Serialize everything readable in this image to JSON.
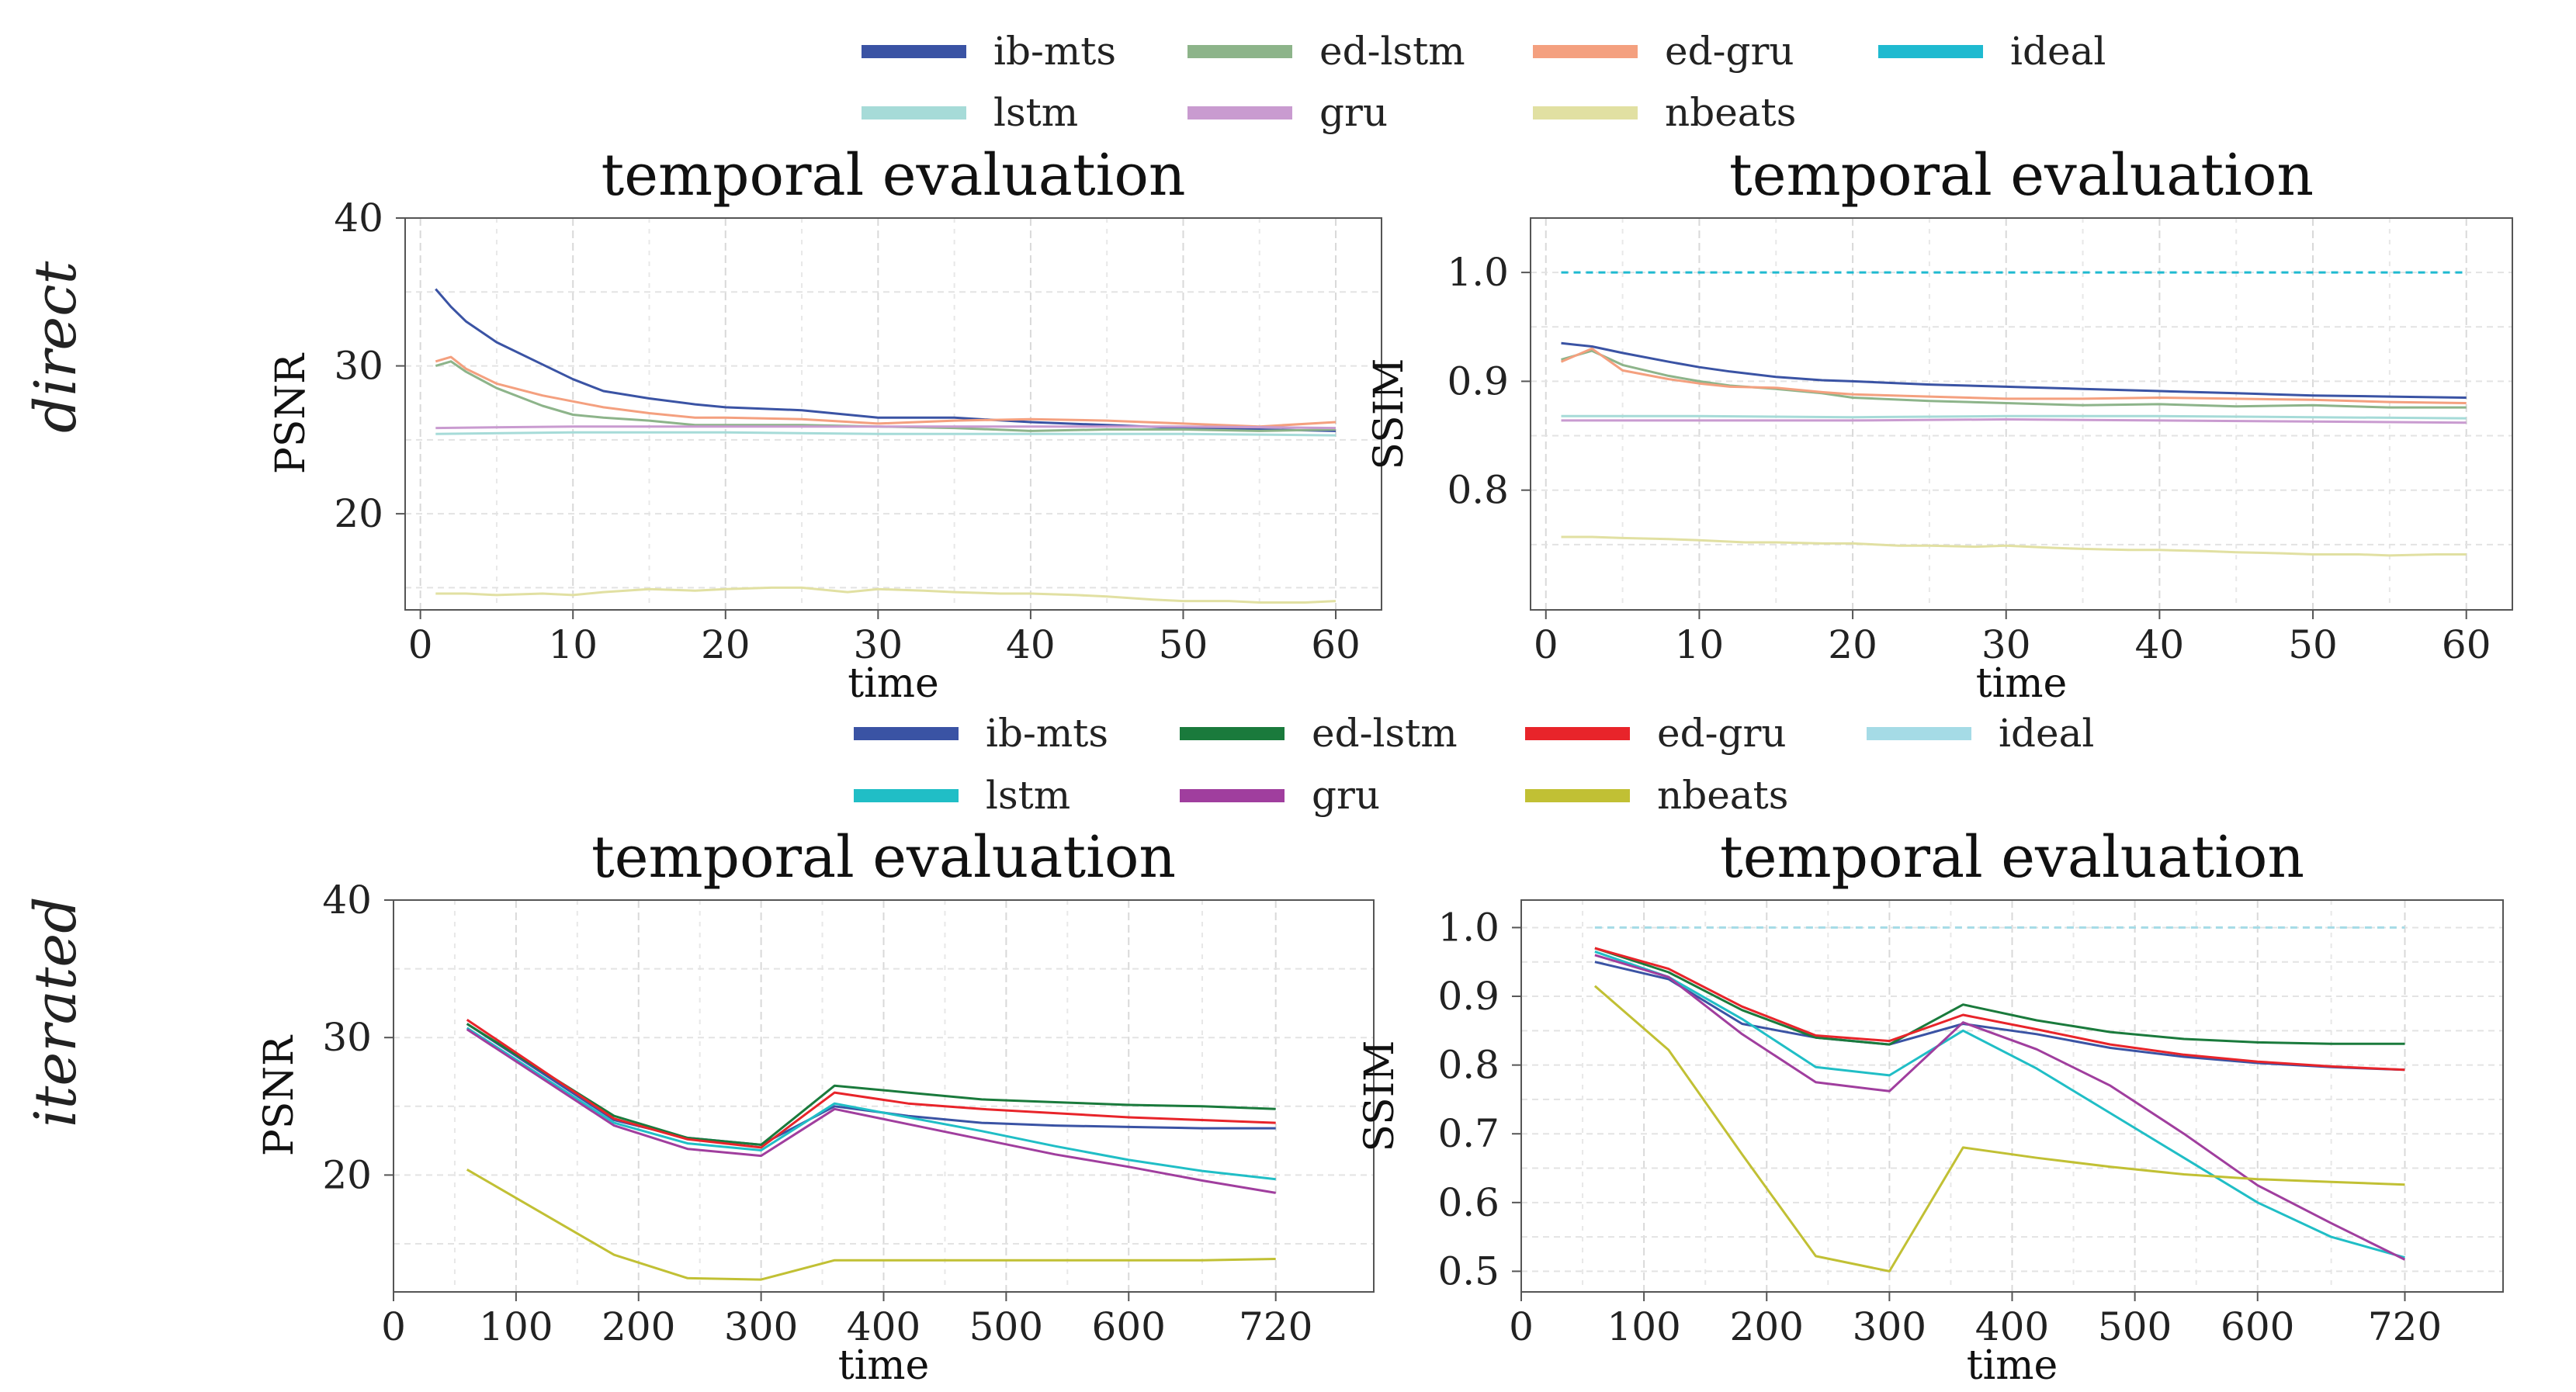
{
  "rows": [
    {
      "label": "direct"
    },
    {
      "label": "iterated"
    }
  ],
  "legends": [
    {
      "items": [
        {
          "name": "ib-mts",
          "color": "#3a53a4"
        },
        {
          "name": "ed-lstm",
          "color": "#8db48a"
        },
        {
          "name": "ed-gru",
          "color": "#f4a07f"
        },
        {
          "name": "ideal",
          "color": "#1fbad0"
        },
        {
          "name": "lstm",
          "color": "#a6dbd8"
        },
        {
          "name": "gru",
          "color": "#c99bd0"
        },
        {
          "name": "nbeats",
          "color": "#e1e0a2"
        }
      ]
    },
    {
      "items": [
        {
          "name": "ib-mts",
          "color": "#3a53a4"
        },
        {
          "name": "ed-lstm",
          "color": "#1a7a3c"
        },
        {
          "name": "ed-gru",
          "color": "#e8242a"
        },
        {
          "name": "ideal",
          "color": "#a5dbe6"
        },
        {
          "name": "lstm",
          "color": "#20bec6"
        },
        {
          "name": "gru",
          "color": "#a03e9e"
        },
        {
          "name": "nbeats",
          "color": "#c1c034"
        }
      ]
    }
  ],
  "chart_data": [
    {
      "type": "line",
      "title": "temporal evaluation",
      "xlabel": "time",
      "ylabel": "PSNR",
      "xlim": [
        -1,
        63
      ],
      "ylim": [
        13.5,
        40
      ],
      "xticks": [
        0,
        10,
        20,
        30,
        40,
        50,
        60
      ],
      "yticks": [
        20,
        30,
        40
      ],
      "legend": 0,
      "series": [
        {
          "name": "ib-mts",
          "x": [
            1,
            2,
            3,
            5,
            8,
            10,
            12,
            15,
            18,
            20,
            25,
            30,
            35,
            40,
            45,
            50,
            55,
            60
          ],
          "values": [
            35.2,
            34.0,
            33.0,
            31.6,
            30.1,
            29.1,
            28.3,
            27.8,
            27.4,
            27.2,
            27.0,
            26.5,
            26.5,
            26.2,
            26.0,
            25.8,
            25.7,
            25.6
          ]
        },
        {
          "name": "ed-lstm",
          "x": [
            1,
            2,
            3,
            5,
            8,
            10,
            12,
            15,
            18,
            20,
            25,
            30,
            35,
            40,
            45,
            50,
            55,
            60
          ],
          "values": [
            30.0,
            30.3,
            29.6,
            28.5,
            27.3,
            26.7,
            26.5,
            26.3,
            26.0,
            26.0,
            26.0,
            25.9,
            25.8,
            25.6,
            25.7,
            25.7,
            25.6,
            25.7
          ]
        },
        {
          "name": "ed-gru",
          "x": [
            1,
            2,
            3,
            5,
            8,
            10,
            12,
            15,
            18,
            20,
            25,
            30,
            35,
            40,
            45,
            50,
            55,
            60
          ],
          "values": [
            30.3,
            30.6,
            29.8,
            28.8,
            28.0,
            27.6,
            27.2,
            26.8,
            26.5,
            26.5,
            26.4,
            26.1,
            26.3,
            26.4,
            26.3,
            26.1,
            25.9,
            26.2
          ]
        },
        {
          "name": "lstm",
          "x": [
            1,
            10,
            20,
            30,
            40,
            50,
            60
          ],
          "values": [
            25.4,
            25.5,
            25.5,
            25.4,
            25.4,
            25.4,
            25.3
          ]
        },
        {
          "name": "gru",
          "x": [
            1,
            10,
            20,
            30,
            40,
            50,
            60
          ],
          "values": [
            25.8,
            25.9,
            25.9,
            25.9,
            25.9,
            25.9,
            25.8
          ]
        },
        {
          "name": "nbeats",
          "x": [
            1,
            3,
            5,
            8,
            10,
            12,
            15,
            18,
            20,
            23,
            25,
            28,
            30,
            33,
            35,
            38,
            40,
            43,
            45,
            48,
            50,
            53,
            55,
            58,
            60
          ],
          "values": [
            14.6,
            14.6,
            14.5,
            14.6,
            14.5,
            14.7,
            14.9,
            14.8,
            14.9,
            15.0,
            15.0,
            14.7,
            14.9,
            14.8,
            14.7,
            14.6,
            14.6,
            14.5,
            14.4,
            14.2,
            14.1,
            14.1,
            14.0,
            14.0,
            14.1
          ]
        }
      ]
    },
    {
      "type": "line",
      "title": "temporal evaluation",
      "xlabel": "time",
      "ylabel": "SSIM",
      "xlim": [
        -1,
        63
      ],
      "ylim": [
        0.69,
        1.05
      ],
      "xticks": [
        0,
        10,
        20,
        30,
        40,
        50,
        60
      ],
      "yticks": [
        0.8,
        0.9,
        1.0
      ],
      "legend": 0,
      "series": [
        {
          "name": "ideal",
          "x": [
            1,
            60
          ],
          "values": [
            1.0,
            1.0
          ],
          "dashed": true
        },
        {
          "name": "ib-mts",
          "x": [
            1,
            3,
            5,
            8,
            10,
            12,
            15,
            18,
            20,
            25,
            30,
            35,
            40,
            45,
            50,
            55,
            60
          ],
          "values": [
            0.935,
            0.932,
            0.926,
            0.918,
            0.913,
            0.909,
            0.904,
            0.901,
            0.9,
            0.897,
            0.895,
            0.893,
            0.891,
            0.889,
            0.887,
            0.886,
            0.885
          ]
        },
        {
          "name": "ed-lstm",
          "x": [
            1,
            3,
            5,
            8,
            10,
            12,
            15,
            18,
            20,
            25,
            30,
            35,
            40,
            45,
            50,
            55,
            60
          ],
          "values": [
            0.92,
            0.928,
            0.915,
            0.905,
            0.9,
            0.896,
            0.893,
            0.889,
            0.885,
            0.882,
            0.88,
            0.878,
            0.879,
            0.877,
            0.878,
            0.876,
            0.876
          ]
        },
        {
          "name": "ed-gru",
          "x": [
            1,
            3,
            5,
            8,
            10,
            12,
            15,
            18,
            20,
            25,
            30,
            35,
            40,
            45,
            50,
            55,
            60
          ],
          "values": [
            0.918,
            0.93,
            0.91,
            0.902,
            0.898,
            0.895,
            0.894,
            0.89,
            0.888,
            0.886,
            0.884,
            0.884,
            0.885,
            0.884,
            0.883,
            0.881,
            0.88
          ]
        },
        {
          "name": "lstm",
          "x": [
            1,
            10,
            20,
            30,
            40,
            50,
            60
          ],
          "values": [
            0.868,
            0.868,
            0.867,
            0.868,
            0.868,
            0.867,
            0.866
          ]
        },
        {
          "name": "gru",
          "x": [
            1,
            10,
            20,
            30,
            40,
            50,
            60
          ],
          "values": [
            0.864,
            0.864,
            0.864,
            0.865,
            0.864,
            0.863,
            0.862
          ]
        },
        {
          "name": "nbeats",
          "x": [
            1,
            3,
            5,
            8,
            10,
            13,
            15,
            18,
            20,
            23,
            25,
            28,
            30,
            33,
            35,
            38,
            40,
            43,
            45,
            48,
            50,
            53,
            55,
            58,
            60
          ],
          "values": [
            0.757,
            0.757,
            0.756,
            0.755,
            0.754,
            0.752,
            0.752,
            0.751,
            0.751,
            0.749,
            0.749,
            0.748,
            0.749,
            0.747,
            0.746,
            0.745,
            0.745,
            0.744,
            0.743,
            0.742,
            0.741,
            0.741,
            0.74,
            0.741,
            0.741
          ]
        }
      ]
    },
    {
      "type": "line",
      "title": "temporal evaluation",
      "xlabel": "time",
      "ylabel": "PSNR",
      "xlim": [
        0,
        800
      ],
      "ylim": [
        11.5,
        40
      ],
      "xticks": [
        0,
        100,
        200,
        300,
        400,
        500,
        600,
        720
      ],
      "yticks": [
        20,
        30,
        40
      ],
      "legend": 1,
      "series": [
        {
          "name": "ideal",
          "x": [
            60,
            120,
            180,
            240,
            300,
            360,
            420,
            480,
            540,
            600,
            660,
            720
          ],
          "values": [
            null,
            null,
            null,
            null,
            null,
            null,
            null,
            null,
            null,
            null,
            null,
            null
          ],
          "hidden": true
        },
        {
          "name": "ib-mts",
          "x": [
            60,
            180,
            240,
            300,
            360,
            420,
            480,
            540,
            600,
            660,
            720
          ],
          "values": [
            31.0,
            24.0,
            22.7,
            22.2,
            25.0,
            24.3,
            23.8,
            23.6,
            23.5,
            23.4,
            23.4
          ]
        },
        {
          "name": "ed-lstm",
          "x": [
            60,
            180,
            240,
            300,
            360,
            420,
            480,
            540,
            600,
            660,
            720
          ],
          "values": [
            31.0,
            24.3,
            22.7,
            22.2,
            26.5,
            26.0,
            25.5,
            25.3,
            25.1,
            25.0,
            24.8
          ]
        },
        {
          "name": "ed-gru",
          "x": [
            60,
            180,
            240,
            300,
            360,
            420,
            480,
            540,
            600,
            660,
            720
          ],
          "values": [
            31.3,
            24.1,
            22.6,
            22.0,
            26.0,
            25.2,
            24.8,
            24.5,
            24.2,
            24.0,
            23.8
          ]
        },
        {
          "name": "lstm",
          "x": [
            60,
            180,
            240,
            300,
            360,
            420,
            480,
            540,
            600,
            660,
            720
          ],
          "values": [
            30.7,
            23.8,
            22.3,
            21.8,
            25.2,
            24.2,
            23.2,
            22.1,
            21.1,
            20.3,
            19.7
          ]
        },
        {
          "name": "gru",
          "x": [
            60,
            180,
            240,
            300,
            360,
            420,
            480,
            540,
            600,
            660,
            720
          ],
          "values": [
            30.6,
            23.6,
            21.9,
            21.4,
            24.8,
            23.7,
            22.6,
            21.5,
            20.6,
            19.6,
            18.7
          ]
        },
        {
          "name": "nbeats",
          "x": [
            60,
            180,
            240,
            300,
            360,
            420,
            480,
            540,
            600,
            660,
            720
          ],
          "values": [
            20.4,
            14.2,
            12.5,
            12.4,
            13.8,
            13.8,
            13.8,
            13.8,
            13.8,
            13.8,
            13.9
          ]
        }
      ]
    },
    {
      "type": "line",
      "title": "temporal evaluation",
      "xlabel": "time",
      "ylabel": "SSIM",
      "xlim": [
        0,
        800
      ],
      "ylim": [
        0.47,
        1.04
      ],
      "xticks": [
        0,
        100,
        200,
        300,
        400,
        500,
        600,
        720
      ],
      "yticks": [
        0.5,
        0.6,
        0.7,
        0.8,
        0.9,
        1.0
      ],
      "legend": 1,
      "series": [
        {
          "name": "ideal",
          "x": [
            60,
            720
          ],
          "values": [
            1.0,
            1.0
          ],
          "dashed": true
        },
        {
          "name": "ib-mts",
          "x": [
            60,
            120,
            180,
            240,
            300,
            360,
            420,
            480,
            540,
            600,
            660,
            720
          ],
          "values": [
            0.95,
            0.925,
            0.86,
            0.84,
            0.83,
            0.86,
            0.845,
            0.825,
            0.812,
            0.803,
            0.797,
            0.793
          ]
        },
        {
          "name": "ed-lstm",
          "x": [
            60,
            120,
            180,
            240,
            300,
            360,
            420,
            480,
            540,
            600,
            660,
            720
          ],
          "values": [
            0.97,
            0.935,
            0.88,
            0.84,
            0.83,
            0.888,
            0.865,
            0.848,
            0.838,
            0.833,
            0.831,
            0.831
          ]
        },
        {
          "name": "ed-gru",
          "x": [
            60,
            120,
            180,
            240,
            300,
            360,
            420,
            480,
            540,
            600,
            660,
            720
          ],
          "values": [
            0.97,
            0.94,
            0.885,
            0.843,
            0.835,
            0.873,
            0.852,
            0.83,
            0.815,
            0.805,
            0.798,
            0.793
          ]
        },
        {
          "name": "lstm",
          "x": [
            60,
            120,
            180,
            240,
            300,
            360,
            420,
            480,
            540,
            600,
            660,
            720
          ],
          "values": [
            0.965,
            0.928,
            0.867,
            0.797,
            0.785,
            0.85,
            0.795,
            0.73,
            0.665,
            0.6,
            0.55,
            0.52
          ]
        },
        {
          "name": "gru",
          "x": [
            60,
            120,
            180,
            240,
            300,
            360,
            420,
            480,
            540,
            600,
            660,
            720
          ],
          "values": [
            0.96,
            0.928,
            0.845,
            0.775,
            0.762,
            0.862,
            0.823,
            0.77,
            0.7,
            0.625,
            0.57,
            0.517
          ]
        },
        {
          "name": "nbeats",
          "x": [
            60,
            120,
            180,
            240,
            300,
            360,
            420,
            480,
            540,
            600,
            660,
            720
          ],
          "values": [
            0.915,
            0.822,
            0.67,
            0.522,
            0.5,
            0.68,
            0.665,
            0.652,
            0.641,
            0.634,
            0.63,
            0.626
          ]
        }
      ]
    }
  ]
}
